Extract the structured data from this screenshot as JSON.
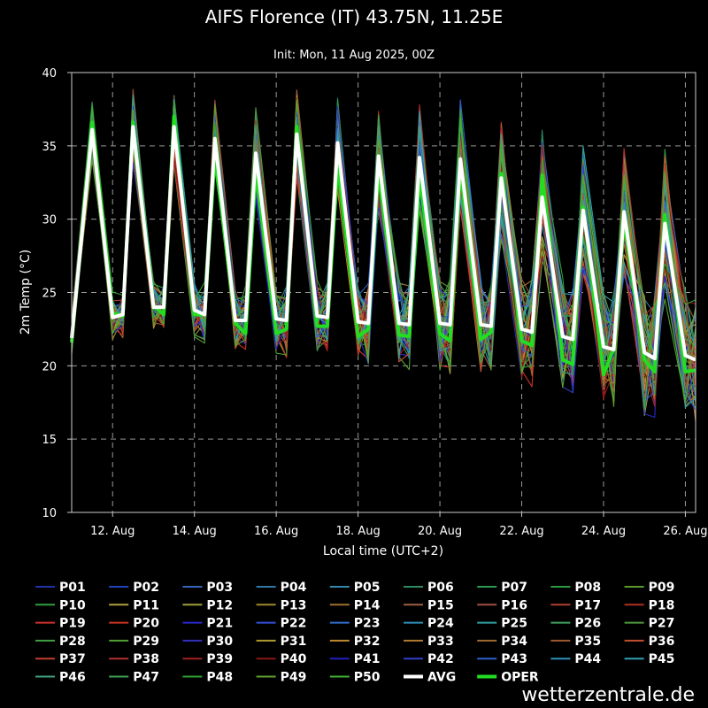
{
  "chart_data": {
    "type": "line",
    "title": "AIFS Florence (IT) 43.75N, 11.25E",
    "subtitle": "Init: Mon, 11 Aug 2025, 00Z",
    "xlabel": "Local time (UTC+2)",
    "ylabel": "2m Temp (°C)",
    "ylim": [
      10,
      40
    ],
    "yticks": [
      "10",
      "15",
      "20",
      "25",
      "30",
      "35",
      "40"
    ],
    "xlim": [
      "2025-08-11 02:00",
      "2025-08-26 08:00"
    ],
    "xticks": [
      "12. Aug",
      "14. Aug",
      "16. Aug",
      "18. Aug",
      "20. Aug",
      "22. Aug",
      "24. Aug",
      "26. Aug"
    ],
    "xtick_dates": [
      "2025-08-12 02:00",
      "2025-08-14 02:00",
      "2025-08-16 02:00",
      "2025-08-18 02:00",
      "2025-08-20 02:00",
      "2025-08-22 02:00",
      "2025-08-24 02:00",
      "2025-08-26 02:00"
    ],
    "grid": true,
    "legend_position": "bottom",
    "series": [
      {
        "name": "AVG",
        "color": "#ffffff",
        "x": [
          "2025-08-11 02:00",
          "2025-08-11 14:00",
          "2025-08-12 02:00",
          "2025-08-12 08:00",
          "2025-08-12 14:00",
          "2025-08-13 02:00",
          "2025-08-13 08:00",
          "2025-08-13 14:00",
          "2025-08-14 02:00",
          "2025-08-14 08:00",
          "2025-08-14 14:00",
          "2025-08-15 02:00",
          "2025-08-15 08:00",
          "2025-08-15 14:00",
          "2025-08-16 02:00",
          "2025-08-16 08:00",
          "2025-08-16 14:00",
          "2025-08-17 02:00",
          "2025-08-17 08:00",
          "2025-08-17 14:00",
          "2025-08-18 02:00",
          "2025-08-18 08:00",
          "2025-08-18 14:00",
          "2025-08-19 02:00",
          "2025-08-19 08:00",
          "2025-08-19 14:00",
          "2025-08-20 02:00",
          "2025-08-20 08:00",
          "2025-08-20 14:00",
          "2025-08-21 02:00",
          "2025-08-21 08:00",
          "2025-08-21 14:00",
          "2025-08-22 02:00",
          "2025-08-22 08:00",
          "2025-08-22 14:00",
          "2025-08-23 02:00",
          "2025-08-23 08:00",
          "2025-08-23 14:00",
          "2025-08-24 02:00",
          "2025-08-24 08:00",
          "2025-08-24 14:00",
          "2025-08-25 02:00",
          "2025-08-25 08:00",
          "2025-08-25 14:00",
          "2025-08-26 02:00",
          "2025-08-26 08:00"
        ],
        "y": [
          21.9,
          36.1,
          23.3,
          23.5,
          36.3,
          24.0,
          24.0,
          36.3,
          23.8,
          23.5,
          35.5,
          23.1,
          23.1,
          34.5,
          23.2,
          23.1,
          35.8,
          23.4,
          23.3,
          35.2,
          23.0,
          22.9,
          34.3,
          22.9,
          22.8,
          34.2,
          22.9,
          22.8,
          34.1,
          22.8,
          22.7,
          32.8,
          22.5,
          22.3,
          31.5,
          22.0,
          21.8,
          30.6,
          21.3,
          21.1,
          30.5,
          20.9,
          20.5,
          29.7,
          20.7,
          20.4
        ]
      },
      {
        "name": "OPER",
        "color": "#22dd22",
        "x": [
          "2025-08-11 02:00",
          "2025-08-11 14:00",
          "2025-08-12 02:00",
          "2025-08-12 08:00",
          "2025-08-12 14:00",
          "2025-08-13 02:00",
          "2025-08-13 08:00",
          "2025-08-13 14:00",
          "2025-08-14 02:00",
          "2025-08-14 08:00",
          "2025-08-14 14:00",
          "2025-08-15 02:00",
          "2025-08-15 08:00",
          "2025-08-15 14:00",
          "2025-08-16 02:00",
          "2025-08-16 08:00",
          "2025-08-16 14:00",
          "2025-08-17 02:00",
          "2025-08-17 08:00",
          "2025-08-17 14:00",
          "2025-08-18 02:00",
          "2025-08-18 08:00",
          "2025-08-18 14:00",
          "2025-08-19 02:00",
          "2025-08-19 08:00",
          "2025-08-19 14:00",
          "2025-08-20 02:00",
          "2025-08-20 08:00",
          "2025-08-20 14:00",
          "2025-08-21 02:00",
          "2025-08-21 08:00",
          "2025-08-21 14:00",
          "2025-08-22 02:00",
          "2025-08-22 08:00",
          "2025-08-22 14:00",
          "2025-08-23 02:00",
          "2025-08-23 08:00",
          "2025-08-23 14:00",
          "2025-08-24 02:00",
          "2025-08-24 08:00",
          "2025-08-24 14:00",
          "2025-08-25 02:00",
          "2025-08-25 08:00",
          "2025-08-25 14:00",
          "2025-08-26 02:00",
          "2025-08-26 08:00"
        ],
        "y": [
          21.6,
          36.6,
          23.6,
          23.4,
          36.6,
          24.1,
          23.5,
          37.0,
          23.5,
          23.5,
          34.4,
          22.9,
          22.2,
          33.3,
          22.2,
          22.5,
          36.3,
          22.7,
          22.7,
          33.8,
          22.0,
          22.5,
          33.3,
          22.1,
          22.0,
          32.9,
          22.2,
          21.7,
          33.4,
          21.8,
          22.3,
          33.1,
          21.7,
          21.4,
          33.0,
          20.4,
          20.1,
          30.8,
          19.4,
          21.2,
          29.9,
          20.4,
          19.6,
          30.3,
          19.6,
          19.7
        ]
      }
    ],
    "members": [
      "P01",
      "P02",
      "P03",
      "P04",
      "P05",
      "P06",
      "P07",
      "P08",
      "P09",
      "P10",
      "P11",
      "P12",
      "P13",
      "P14",
      "P15",
      "P16",
      "P17",
      "P18",
      "P19",
      "P20",
      "P21",
      "P22",
      "P23",
      "P24",
      "P25",
      "P26",
      "P27",
      "P28",
      "P29",
      "P30",
      "P31",
      "P32",
      "P33",
      "P34",
      "P35",
      "P36",
      "P37",
      "P38",
      "P39",
      "P40",
      "P41",
      "P42",
      "P43",
      "P44",
      "P45",
      "P46",
      "P47",
      "P48",
      "P49",
      "P50"
    ],
    "member_colors": [
      "#2233aa",
      "#2244bb",
      "#3366bb",
      "#3377aa",
      "#3388aa",
      "#2d8a60",
      "#2b9a50",
      "#2d9a40",
      "#5a9a2a",
      "#30a040",
      "#b0a040",
      "#a0a040",
      "#a08a30",
      "#a07030",
      "#a06040",
      "#a05040",
      "#b04030",
      "#b03020",
      "#d03030",
      "#cc3322",
      "#2a2acc",
      "#3050dd",
      "#3070cc",
      "#3090bb",
      "#30a0a0",
      "#40a060",
      "#509a40",
      "#40a040",
      "#50a030",
      "#3030bb",
      "#b09a30",
      "#c08830",
      "#b07a30",
      "#a06a30",
      "#a05a30",
      "#c05030",
      "#c04030",
      "#b03030",
      "#a02020",
      "#8a1515",
      "#2020bb",
      "#3040cc",
      "#3060cc",
      "#3090bb",
      "#30a0b0",
      "#40a080",
      "#40a050",
      "#30a030",
      "#60a030",
      "#40b030"
    ],
    "member_seed": 20250811
  },
  "watermark": "wetterzentrale.de"
}
